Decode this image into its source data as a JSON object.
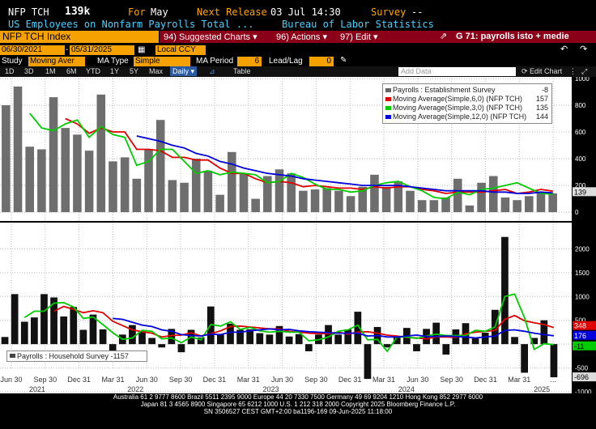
{
  "header": {
    "ticker": "NFP TCH",
    "last": "139k",
    "for_label": "For",
    "for_period": "May",
    "next_release_label": "Next Release",
    "next_release": "03 Jul 14:30",
    "survey_label": "Survey",
    "survey_value": "--",
    "description": "US Employees on Nonfarm Payrolls Total ...",
    "source": "Bureau of Labor Statistics"
  },
  "toolbar": {
    "security": "NFP TCH Index",
    "suggested": "94) Suggested Charts",
    "actions": "96) Actions",
    "edit": "97) Edit",
    "title": "G 71: payrolls isto + medie",
    "arrow_icon": "share-arrow-icon"
  },
  "controls": {
    "start_date": "06/30/2021",
    "end_date": "05/31/2025",
    "currency": "Local CCY",
    "study_label": "Study",
    "study_value": "Moving Aver",
    "ma_type_label": "MA Type",
    "ma_type_value": "Simple",
    "ma_period_label": "MA Period",
    "ma_period_value": "6",
    "lead_lag_label": "Lead/Lag",
    "lead_lag_value": "0"
  },
  "tabs": {
    "items": [
      "1D",
      "3D",
      "1M",
      "6M",
      "YTD",
      "1Y",
      "5Y",
      "Max"
    ],
    "frequency": "Daily",
    "table": "Table",
    "add_data": "Add Data",
    "edit_chart": "Edit Chart"
  },
  "legend_top": {
    "items": [
      {
        "name": "Payrolls : Establishment Survey",
        "value": "-8",
        "color": "#666666"
      },
      {
        "name": "Moving Average(Simple,6,0) (NFP TCH)",
        "value": "157",
        "color": "#e00000"
      },
      {
        "name": "Moving Average(Simple,3,0) (NFP TCH)",
        "value": "135",
        "color": "#00cc00"
      },
      {
        "name": "Moving Average(Simple,12,0) (NFP TCH)",
        "value": "144",
        "color": "#0000dd"
      }
    ]
  },
  "legend_bottom": {
    "name": "Payrolls : Household Survey",
    "value": "-1157"
  },
  "right_tags_top": {
    "last": "139"
  },
  "right_tags_bottom": {
    "ma6": "348",
    "ma12": "176",
    "ma3": "-11",
    "last": "-696"
  },
  "footer": {
    "line1": "Australia 61 2 9777 8600 Brazil 5511 2395 9000 Europe 44 20 7330 7500 Germany 49 69 9204 1210 Hong Kong 852 2977 6000",
    "line2": "Japan 81 3 4565 8900        Singapore 65 6212 1000        U.S. 1 212 318 2000           Copyright 2025 Bloomberg Finance L.P.",
    "line3": "SN 3506527 CEST GMT+2:00 ba1196-169 09-Jun-2025 11:18:00"
  },
  "chart_data": [
    {
      "type": "bar",
      "title": "Payrolls : Establishment Survey",
      "ylim": [
        -60,
        1000
      ],
      "yticks": [
        0,
        200,
        400,
        600,
        800,
        1000
      ],
      "values": [
        800,
        940,
        490,
        470,
        860,
        630,
        580,
        460,
        880,
        380,
        410,
        250,
        470,
        690,
        240,
        220,
        400,
        310,
        130,
        450,
        290,
        100,
        270,
        320,
        290,
        160,
        170,
        180,
        160,
        120,
        190,
        280,
        190,
        230,
        160,
        90,
        90,
        110,
        250,
        50,
        220,
        270,
        110,
        90,
        120,
        150,
        140
      ],
      "series": [
        {
          "name": "Moving Average(Simple,6,0) (NFP TCH)",
          "color": "#e00000",
          "values": [
            null,
            null,
            null,
            null,
            null,
            700,
            660,
            590,
            630,
            600,
            600,
            470,
            470,
            460,
            410,
            410,
            390,
            390,
            330,
            290,
            290,
            250,
            220,
            230,
            220,
            190,
            200,
            190,
            180,
            180,
            170,
            190,
            180,
            190,
            190,
            170,
            160,
            140,
            150,
            150,
            150,
            160,
            170,
            140,
            150,
            170,
            157
          ]
        },
        {
          "name": "Moving Average(Simple,3,0) (NFP TCH)",
          "color": "#00cc00",
          "values": [
            null,
            null,
            740,
            630,
            610,
            660,
            690,
            560,
            640,
            580,
            560,
            350,
            380,
            470,
            470,
            380,
            290,
            310,
            280,
            300,
            290,
            280,
            220,
            230,
            290,
            260,
            210,
            170,
            170,
            150,
            160,
            200,
            220,
            230,
            190,
            160,
            110,
            100,
            150,
            130,
            170,
            180,
            200,
            220,
            180,
            140,
            135
          ]
        },
        {
          "name": "Moving Average(Simple,12,0) (NFP TCH)",
          "color": "#0000dd",
          "values": [
            null,
            null,
            null,
            null,
            null,
            null,
            null,
            null,
            null,
            null,
            null,
            570,
            550,
            530,
            500,
            480,
            440,
            420,
            380,
            360,
            330,
            310,
            290,
            280,
            270,
            250,
            240,
            230,
            220,
            210,
            200,
            200,
            200,
            200,
            190,
            180,
            170,
            160,
            160,
            160,
            160,
            150,
            150,
            140,
            140,
            150,
            144
          ]
        }
      ]
    },
    {
      "type": "bar",
      "title": "Payrolls : Household Survey",
      "ylim": [
        -1000,
        2500
      ],
      "yticks": [
        -1000,
        -500,
        0,
        500,
        1000,
        1500,
        2000
      ],
      "values": [
        150,
        1050,
        470,
        560,
        1050,
        980,
        580,
        780,
        300,
        620,
        310,
        -210,
        200,
        400,
        270,
        130,
        -70,
        320,
        -170,
        300,
        140,
        790,
        200,
        430,
        300,
        310,
        230,
        200,
        380,
        160,
        210,
        -150,
        200,
        400,
        200,
        310,
        680,
        -730,
        360,
        -70,
        170,
        340,
        -150,
        320,
        450,
        -220,
        310,
        440,
        120,
        240,
        720,
        2250,
        150,
        -600,
        130,
        500,
        -696
      ],
      "series": [
        {
          "name": "MA6",
          "color": "#e00000",
          "values": [
            null,
            null,
            null,
            null,
            null,
            690,
            790,
            730,
            660,
            700,
            660,
            480,
            390,
            300,
            260,
            230,
            150,
            180,
            190,
            240,
            170,
            220,
            280,
            370,
            380,
            360,
            340,
            320,
            320,
            270,
            250,
            230,
            220,
            220,
            250,
            210,
            250,
            260,
            230,
            190,
            170,
            140,
            130,
            110,
            150,
            150,
            140,
            220,
            250,
            270,
            290,
            520,
            600,
            490,
            450,
            410,
            348
          ]
        },
        {
          "name": "MA3",
          "color": "#00cc00",
          "values": [
            null,
            null,
            560,
            690,
            690,
            860,
            870,
            780,
            540,
            570,
            410,
            240,
            100,
            130,
            290,
            270,
            110,
            130,
            30,
            150,
            90,
            410,
            380,
            470,
            310,
            350,
            280,
            250,
            270,
            250,
            250,
            70,
            90,
            150,
            270,
            300,
            400,
            90,
            100,
            -150,
            150,
            150,
            120,
            170,
            210,
            180,
            180,
            180,
            290,
            270,
            360,
            1000,
            1050,
            560,
            -110,
            10,
            -11
          ]
        },
        {
          "name": "MA12",
          "color": "#0000dd",
          "values": [
            null,
            null,
            null,
            null,
            null,
            null,
            null,
            null,
            null,
            null,
            null,
            540,
            520,
            460,
            400,
            370,
            300,
            270,
            200,
            180,
            170,
            210,
            200,
            250,
            250,
            280,
            300,
            320,
            300,
            310,
            280,
            260,
            250,
            240,
            230,
            230,
            230,
            170,
            180,
            150,
            150,
            170,
            190,
            160,
            160,
            170,
            160,
            150,
            130,
            150,
            170,
            290,
            300,
            270,
            230,
            200,
            176
          ]
        }
      ]
    }
  ],
  "x_axis": {
    "month_labels": [
      "Jun 30",
      "Sep 30",
      "Dec 31",
      "Mar 31",
      "Jun 30",
      "Sep 30",
      "Dec 31",
      "Mar 31",
      "Jun 30",
      "Sep 30",
      "Dec 31",
      "Mar 31",
      "Jun 30",
      "Sep 30",
      "Dec 31",
      "Mar 31",
      "..."
    ],
    "year_labels": [
      "2021",
      "2022",
      "2023",
      "2024",
      "2025"
    ]
  }
}
